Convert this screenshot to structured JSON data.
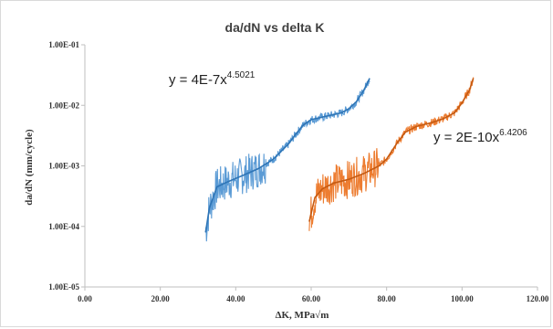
{
  "chart_data": {
    "type": "scatter",
    "title": "da/dN vs delta K",
    "xlabel": "ΔK, MPa√m",
    "ylabel": "da/dN (mm/cycle)",
    "xlim": [
      0,
      120
    ],
    "ylim": [
      1e-05,
      0.1
    ],
    "y_scale": "log",
    "x_ticks": [
      "0.00",
      "20.00",
      "40.00",
      "60.00",
      "80.00",
      "100.00",
      "120.00"
    ],
    "y_ticks": [
      "1.00E-05",
      "1.00E-04",
      "1.00E-03",
      "1.00E-02",
      "1.00E-01"
    ],
    "grid": false,
    "legend": "none",
    "series": [
      {
        "color": "#2e75b6",
        "data_color": "#5b9bd5",
        "x_range": [
          32,
          75.5
        ],
        "noise_zone": [
          32,
          48
        ],
        "trend": {
          "equation": "y = 4E-7x",
          "exponent": "4.5021",
          "coef": 4e-07,
          "power": 4.5021
        },
        "points": [
          [
            32,
            8e-05
          ],
          [
            33,
            0.0002
          ],
          [
            35,
            0.00045
          ],
          [
            38,
            0.00055
          ],
          [
            42,
            0.0007
          ],
          [
            46,
            0.0009
          ],
          [
            50,
            0.0013
          ],
          [
            54,
            0.0023
          ],
          [
            56,
            0.0034
          ],
          [
            58,
            0.0048
          ],
          [
            60,
            0.0058
          ],
          [
            64,
            0.0066
          ],
          [
            68,
            0.0075
          ],
          [
            70,
            0.0088
          ],
          [
            72,
            0.0115
          ],
          [
            74,
            0.018
          ],
          [
            75.5,
            0.028
          ]
        ]
      },
      {
        "color": "#c55a11",
        "data_color": "#ed7d31",
        "x_range": [
          59.5,
          103
        ],
        "noise_zone": [
          59.5,
          78
        ],
        "trend": {
          "equation": "y = 2E-10x",
          "exponent": "6.4206",
          "coef": 2e-10,
          "power": 6.4206
        },
        "points": [
          [
            59.5,
            0.00012
          ],
          [
            61,
            0.0003
          ],
          [
            63,
            0.00042
          ],
          [
            66,
            0.00052
          ],
          [
            70,
            0.0006
          ],
          [
            74,
            0.00075
          ],
          [
            78,
            0.001
          ],
          [
            80,
            0.0013
          ],
          [
            83,
            0.0025
          ],
          [
            85,
            0.0036
          ],
          [
            88,
            0.0045
          ],
          [
            92,
            0.0052
          ],
          [
            95,
            0.006
          ],
          [
            98,
            0.0075
          ],
          [
            100,
            0.011
          ],
          [
            102,
            0.018
          ],
          [
            103,
            0.028
          ]
        ]
      }
    ]
  }
}
